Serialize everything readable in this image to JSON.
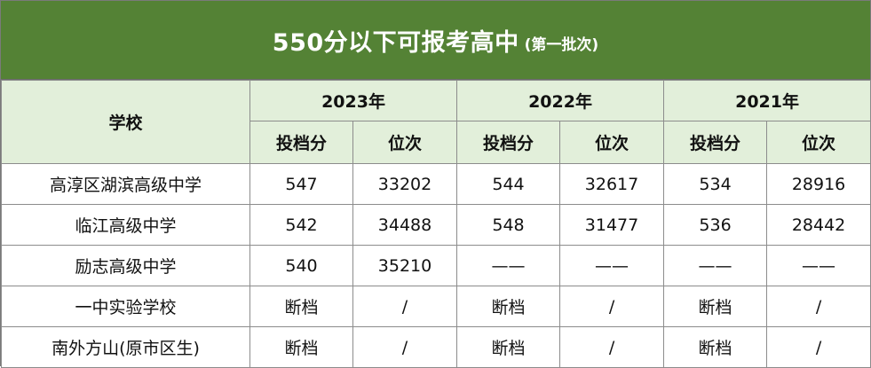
{
  "title": {
    "main": "550分以下可报考高中",
    "sub": "(第一批次)"
  },
  "header": {
    "school": "学校",
    "years": [
      "2023年",
      "2022年",
      "2021年"
    ],
    "score": "投档分",
    "rank": "位次"
  },
  "rows": [
    {
      "school": "高淳区湖滨高级中学",
      "cells": [
        "547",
        "33202",
        "544",
        "32617",
        "534",
        "28916"
      ]
    },
    {
      "school": "临江高级中学",
      "cells": [
        "542",
        "34488",
        "548",
        "31477",
        "536",
        "28442"
      ]
    },
    {
      "school": "励志高级中学",
      "cells": [
        "540",
        "35210",
        "——",
        "——",
        "——",
        "——"
      ]
    },
    {
      "school": "一中实验学校",
      "cells": [
        "断档",
        "/",
        "断档",
        "/",
        "断档",
        "/"
      ]
    },
    {
      "school": "南外方山(原市区生)",
      "cells": [
        "断档",
        "/",
        "断档",
        "/",
        "断档",
        "/"
      ]
    }
  ],
  "colors": {
    "title_bg": "#548235",
    "header_bg": "#e2efda"
  }
}
